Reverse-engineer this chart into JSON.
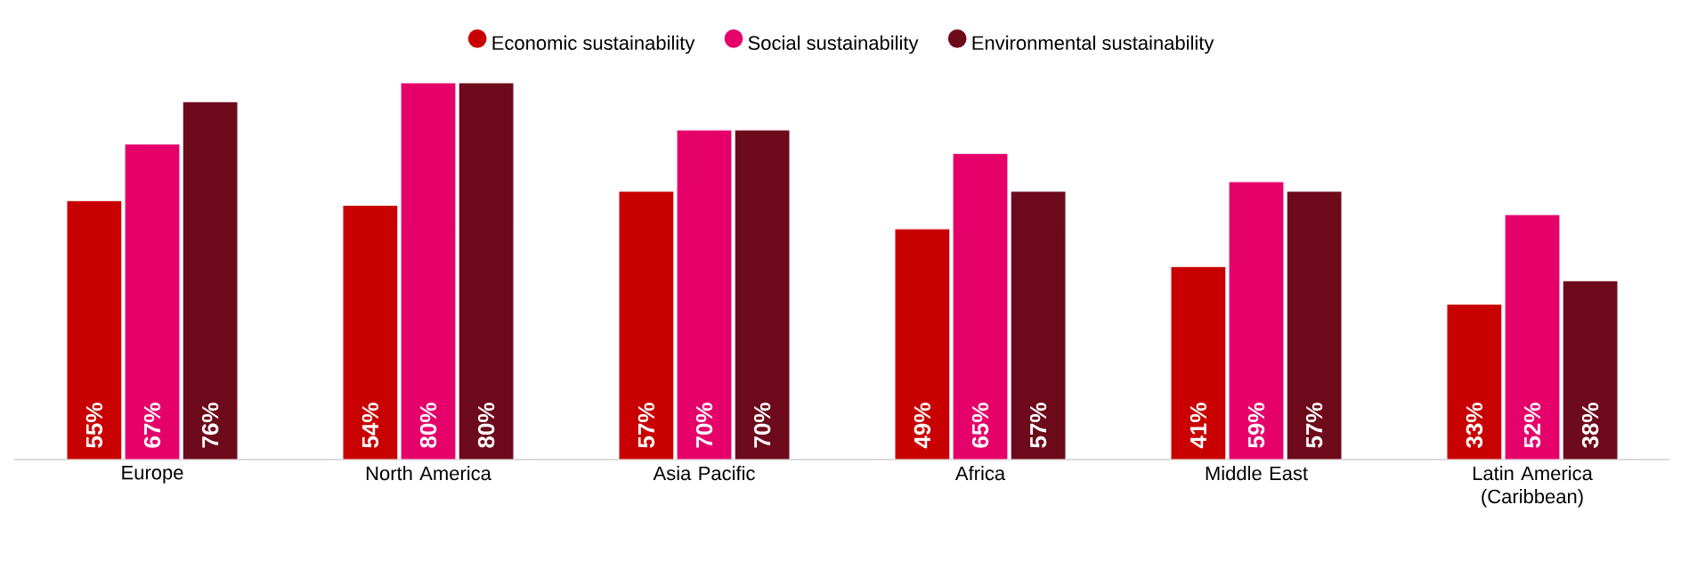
{
  "chart_data": {
    "type": "bar",
    "categories": [
      "Europe",
      "North America",
      "Asia Pacific",
      "Africa",
      "Middle East",
      "Latin America (Caribbean)"
    ],
    "series": [
      {
        "name": "Economic sustainability",
        "color": "#c80000",
        "values": [
          55,
          54,
          57,
          49,
          41,
          33
        ],
        "value_labels": [
          "55%",
          "54%",
          "57%",
          "49%",
          "41%",
          "33%"
        ]
      },
      {
        "name": "Social sustainability",
        "color": "#e5006a",
        "values": [
          67,
          80,
          70,
          65,
          59,
          52
        ],
        "value_labels": [
          "67%",
          "80%",
          "70%",
          "65%",
          "59%",
          "52%"
        ]
      },
      {
        "name": "Environmental sustainability",
        "color": "#6d0a1c",
        "values": [
          76,
          80,
          70,
          57,
          57,
          38
        ],
        "value_labels": [
          "76%",
          "80%",
          "70%",
          "57%",
          "57%",
          "38%"
        ]
      }
    ],
    "legend": "top",
    "grid": false
  }
}
